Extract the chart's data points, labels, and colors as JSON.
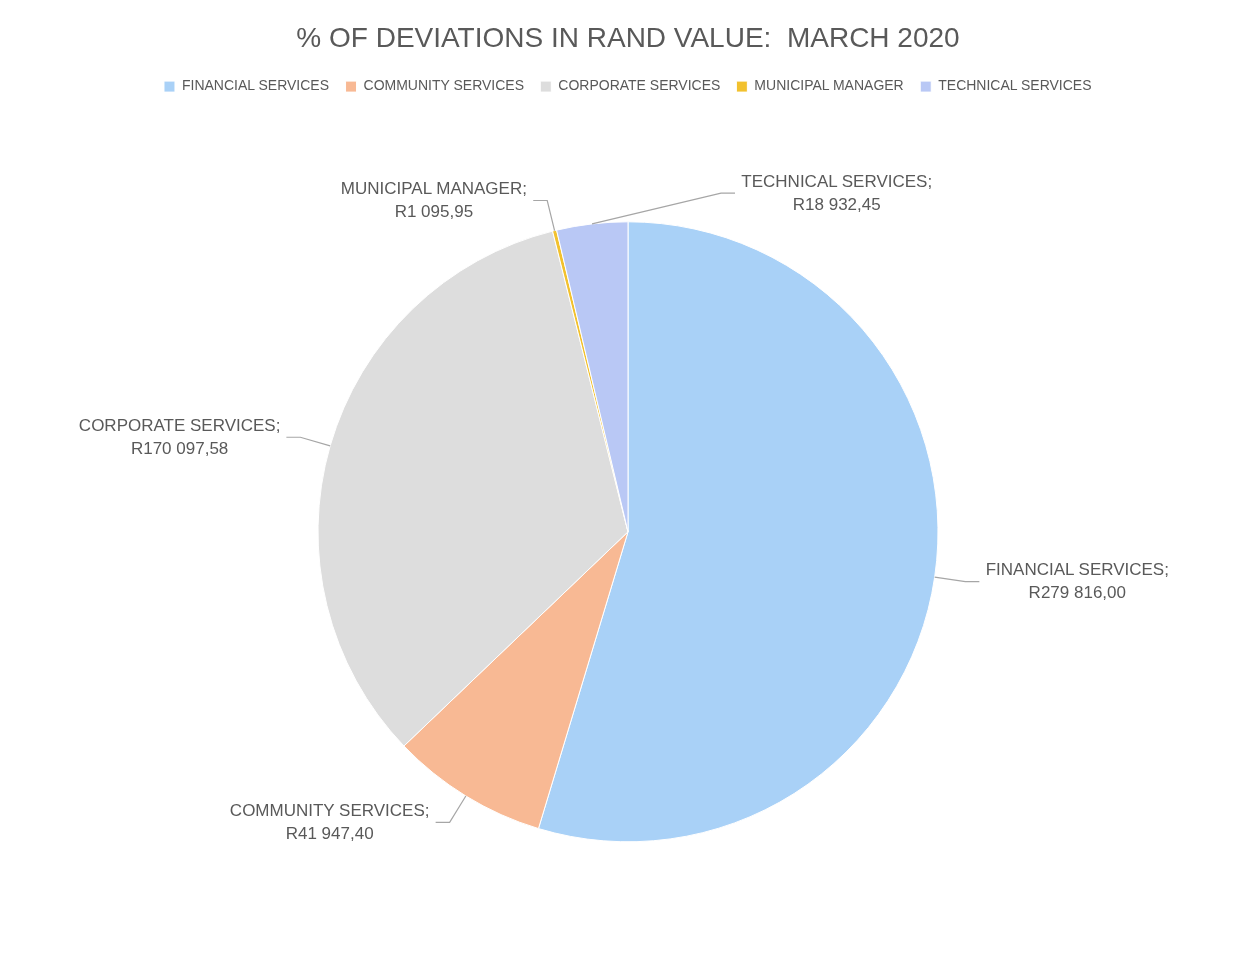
{
  "chart_data": {
    "type": "pie",
    "title": "% OF DEVIATIONS IN RAND VALUE:  MARCH 2020",
    "categories": [
      "FINANCIAL SERVICES",
      "COMMUNITY SERVICES",
      "CORPORATE SERVICES",
      "MUNICIPAL MANAGER",
      "TECHNICAL SERVICES"
    ],
    "values": [
      279816.0,
      41947.4,
      170097.58,
      1095.95,
      18932.45
    ],
    "value_labels": [
      "FINANCIAL SERVICES; R279 816,00",
      "COMMUNITY SERVICES; R41 947,40",
      "CORPORATE SERVICES; R170 097,58",
      "MUNICIPAL MANAGER; R1 095,95",
      "TECHNICAL SERVICES; R18 932,45"
    ],
    "colors": [
      "#a9d1f7",
      "#f8b994",
      "#dddddd",
      "#f2c12e",
      "#b9c8f5"
    ],
    "legend": "top"
  }
}
